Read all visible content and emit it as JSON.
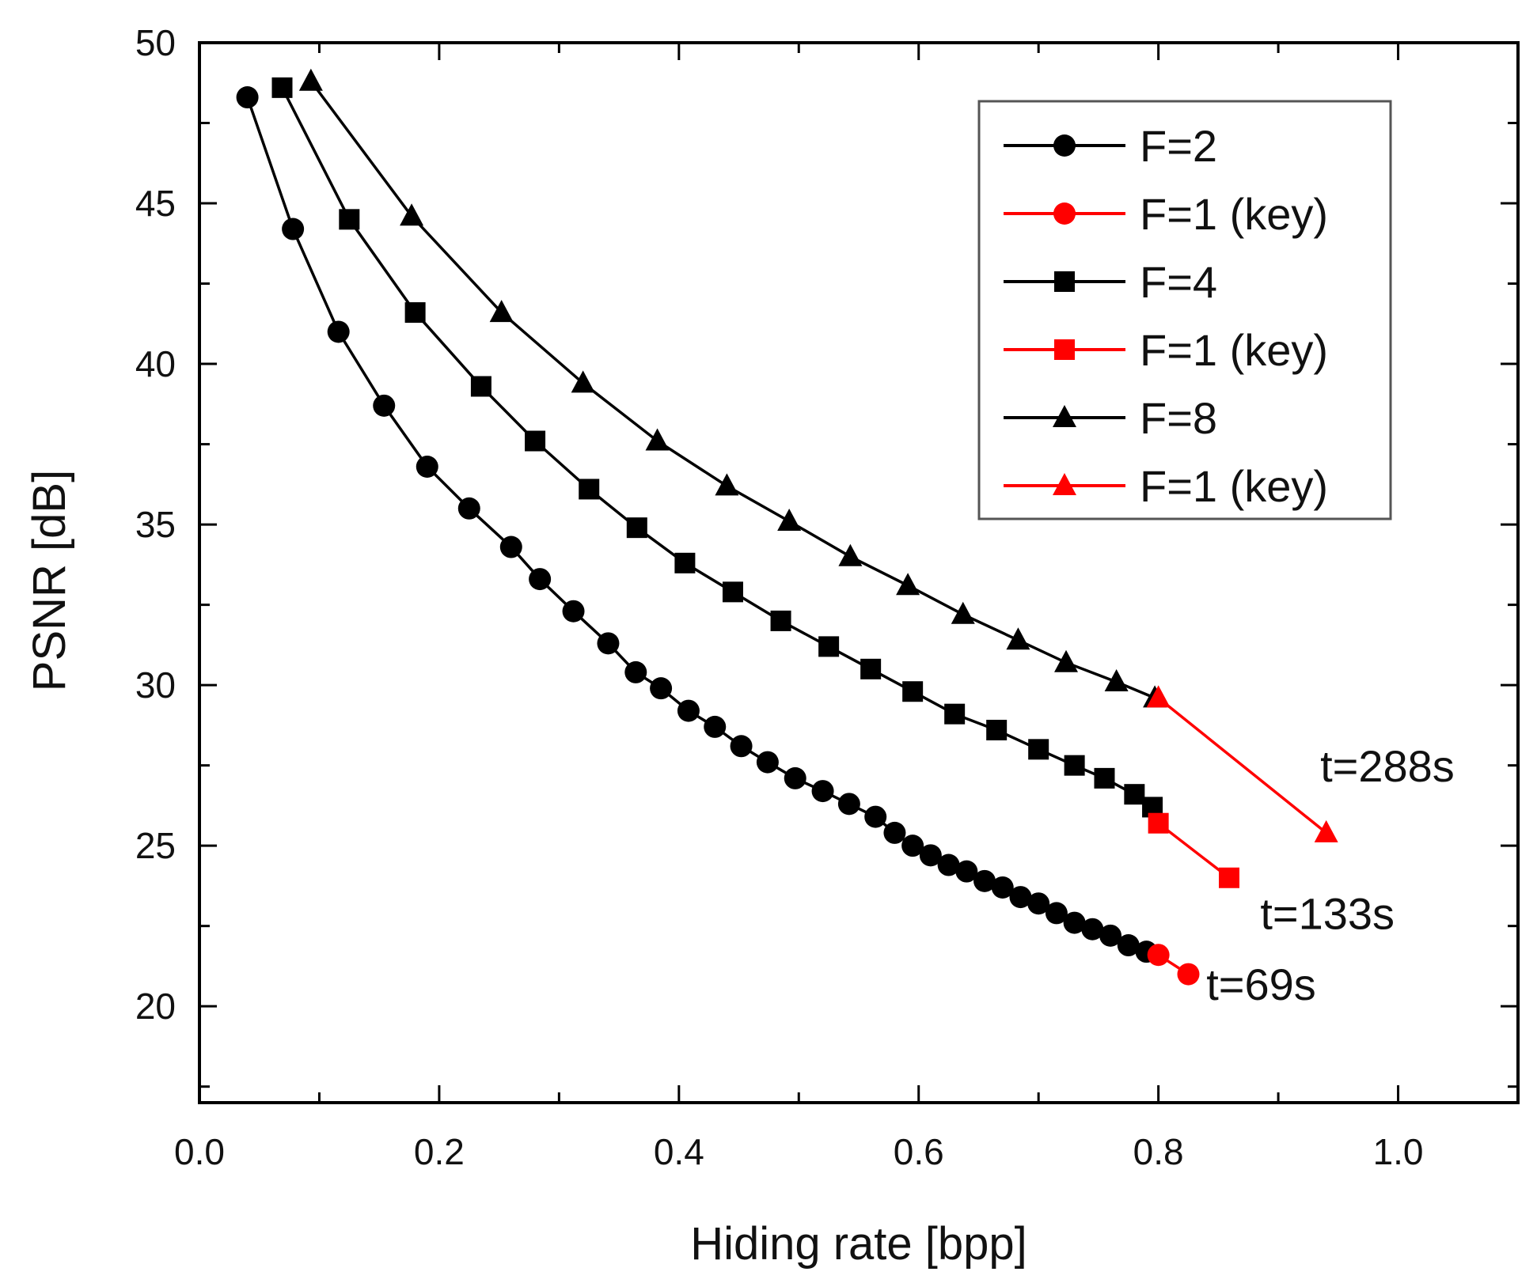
{
  "chart_data": {
    "type": "line",
    "xlabel": "Hiding rate [bpp]",
    "ylabel": "PSNR [dB]",
    "xlim": [
      0.0,
      1.1
    ],
    "ylim": [
      17.0,
      50.0
    ],
    "x_ticks": [
      0.0,
      0.2,
      0.4,
      0.6,
      0.8,
      1.0
    ],
    "x_tick_labels": [
      "0.0",
      "0.2",
      "0.4",
      "0.6",
      "0.8",
      "1.0"
    ],
    "y_ticks": [
      20,
      25,
      30,
      35,
      40,
      45,
      50
    ],
    "y_tick_labels": [
      "20",
      "25",
      "30",
      "35",
      "40",
      "45",
      "50"
    ],
    "legend_position": "top-right",
    "series": [
      {
        "name": "F=2",
        "color": "#000000",
        "marker": "circle",
        "x": [
          0.04,
          0.078,
          0.116,
          0.154,
          0.19,
          0.225,
          0.26,
          0.284,
          0.312,
          0.341,
          0.364,
          0.385,
          0.408,
          0.43,
          0.452,
          0.474,
          0.497,
          0.52,
          0.542,
          0.564,
          0.58,
          0.595,
          0.61,
          0.625,
          0.64,
          0.655,
          0.67,
          0.685,
          0.7,
          0.715,
          0.73,
          0.745,
          0.76,
          0.775,
          0.79
        ],
        "y": [
          48.3,
          44.2,
          41.0,
          38.7,
          36.8,
          35.5,
          34.3,
          33.3,
          32.3,
          31.3,
          30.4,
          29.9,
          29.2,
          28.7,
          28.1,
          27.6,
          27.1,
          26.7,
          26.3,
          25.9,
          25.4,
          25.0,
          24.7,
          24.4,
          24.2,
          23.9,
          23.7,
          23.4,
          23.2,
          22.9,
          22.6,
          22.4,
          22.2,
          21.9,
          21.7
        ]
      },
      {
        "name": "F=1 (key)",
        "color": "#ff0000",
        "marker": "circle",
        "x": [
          0.8,
          0.825
        ],
        "y": [
          21.6,
          21.0
        ]
      },
      {
        "name": "F=4",
        "color": "#000000",
        "marker": "square",
        "x": [
          0.069,
          0.125,
          0.18,
          0.235,
          0.28,
          0.325,
          0.365,
          0.405,
          0.445,
          0.485,
          0.525,
          0.56,
          0.595,
          0.63,
          0.665,
          0.7,
          0.73,
          0.755,
          0.78,
          0.795
        ],
        "y": [
          48.6,
          44.5,
          41.6,
          39.3,
          37.6,
          36.1,
          34.9,
          33.8,
          32.9,
          32.0,
          31.2,
          30.5,
          29.8,
          29.1,
          28.6,
          28.0,
          27.5,
          27.1,
          26.6,
          26.2
        ]
      },
      {
        "name": "F=1 (key)",
        "color": "#ff0000",
        "marker": "square",
        "x": [
          0.8,
          0.859
        ],
        "y": [
          25.7,
          24.0
        ]
      },
      {
        "name": "F=8",
        "color": "#000000",
        "marker": "triangle",
        "x": [
          0.093,
          0.177,
          0.252,
          0.32,
          0.382,
          0.44,
          0.492,
          0.543,
          0.591,
          0.637,
          0.683,
          0.723,
          0.765,
          0.797
        ],
        "y": [
          48.8,
          44.6,
          41.6,
          39.4,
          37.6,
          36.2,
          35.1,
          34.0,
          33.1,
          32.2,
          31.4,
          30.7,
          30.1,
          29.6
        ]
      },
      {
        "name": "F=1 (key)",
        "color": "#ff0000",
        "marker": "triangle",
        "x": [
          0.8,
          0.94
        ],
        "y": [
          29.6,
          25.4
        ]
      }
    ],
    "annotations": [
      {
        "text": "t=288s",
        "x": 0.935,
        "y": 27.0
      },
      {
        "text": "t=133s",
        "x": 0.885,
        "y": 22.4
      },
      {
        "text": "t=69s",
        "x": 0.84,
        "y": 20.2
      }
    ]
  }
}
